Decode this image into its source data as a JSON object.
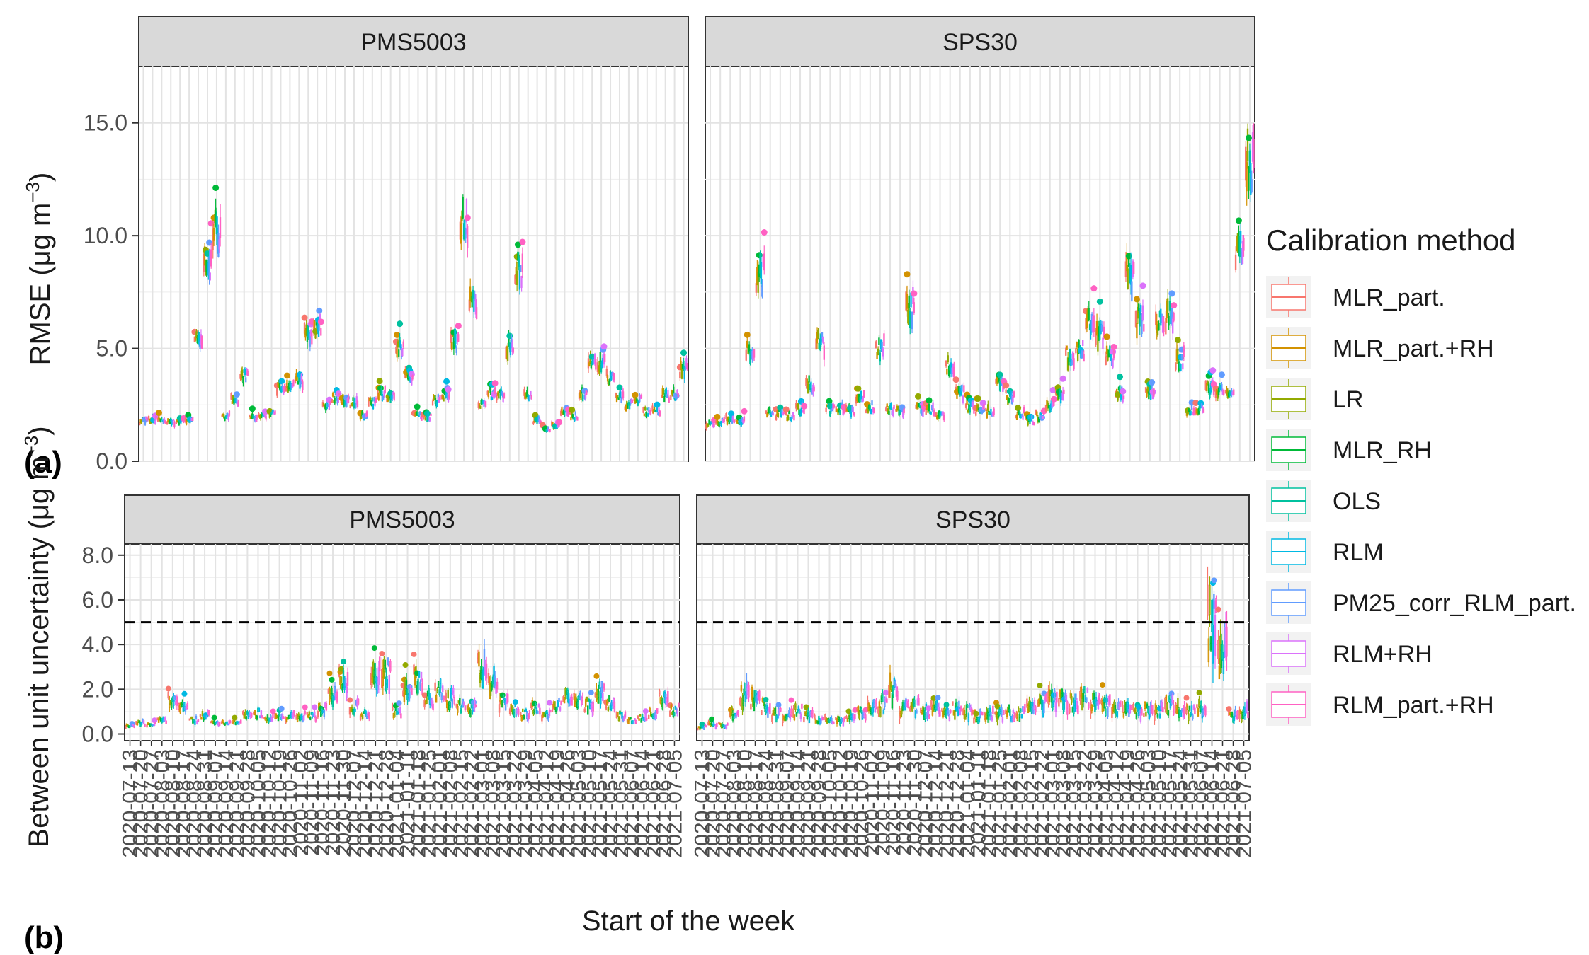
{
  "chart_data": [
    {
      "type": "box",
      "panel_label": "(a)",
      "ylabel_main": "RMSE (",
      "ylabel_unit": "μg m",
      "ylabel_sup": "−3",
      "ylabel_close": ")",
      "ylim": [
        0,
        17.5
      ],
      "yticks": [
        0,
        5,
        10,
        15
      ],
      "ytick_labels": [
        "0.0",
        "5.0",
        "10.0",
        "15.0"
      ],
      "facets": [
        {
          "name": "PMS5003",
          "weeks": 60,
          "levels": [
            1.8,
            1.8,
            1.8,
            1.75,
            1.8,
            1.75,
            5.3,
            8.8,
            10.2,
            2.0,
            2.7,
            3.8,
            1.9,
            2.0,
            2.1,
            3.3,
            3.4,
            3.5,
            5.6,
            5.9,
            2.5,
            2.8,
            2.7,
            2.6,
            2.0,
            2.6,
            3.0,
            2.9,
            5.0,
            3.7,
            2.0,
            2.0,
            2.7,
            2.9,
            5.3,
            10.5,
            7.0,
            2.5,
            3.0,
            2.9,
            5.0,
            8.5,
            2.9,
            1.8,
            1.4,
            1.6,
            2.2,
            2.0,
            3.0,
            4.3,
            4.4,
            3.7,
            2.9,
            2.5,
            2.7,
            2.2,
            2.2,
            2.9,
            3.0,
            4.1
          ]
        },
        {
          "name": "SPS30",
          "weeks": 55,
          "levels": [
            1.7,
            1.75,
            1.85,
            1.75,
            5.0,
            8.2,
            2.2,
            2.1,
            2.0,
            2.3,
            3.4,
            5.2,
            2.3,
            2.3,
            2.2,
            2.9,
            2.4,
            5.0,
            2.3,
            2.2,
            6.8,
            2.3,
            2.3,
            2.0,
            4.3,
            3.0,
            2.4,
            2.3,
            2.2,
            3.4,
            2.9,
            2.1,
            1.8,
            2.0,
            2.5,
            2.9,
            4.7,
            4.9,
            6.3,
            5.7,
            4.6,
            3.0,
            8.2,
            6.3,
            3.1,
            6.2,
            6.4,
            4.5,
            2.2,
            2.3,
            3.2,
            3.1,
            2.9,
            9.5,
            13.0
          ]
        }
      ]
    },
    {
      "type": "box",
      "panel_label": "(b)",
      "ylabel_main": "Between unit uncertainty (",
      "ylabel_unit": "μg m",
      "ylabel_sup": "−3",
      "ylabel_close": ")",
      "ylim": [
        -0.3,
        8.5
      ],
      "yticks": [
        0,
        2,
        4,
        6,
        8
      ],
      "ytick_labels": [
        "0.0",
        "2.0",
        "4.0",
        "6.0",
        "8.0"
      ],
      "reference_line": 5.0,
      "facets": [
        {
          "name": "PMS5003",
          "weeks": 52,
          "levels": [
            0.4,
            0.5,
            0.4,
            0.6,
            1.5,
            1.2,
            0.6,
            0.8,
            0.5,
            0.5,
            0.5,
            0.8,
            0.9,
            0.7,
            0.8,
            0.8,
            0.8,
            0.8,
            1.1,
            1.8,
            2.3,
            1.2,
            0.9,
            2.6,
            2.8,
            1.0,
            2.0,
            2.4,
            1.5,
            1.9,
            1.6,
            1.3,
            1.1,
            2.9,
            2.4,
            1.4,
            1.1,
            0.9,
            1.2,
            0.9,
            1.3,
            1.6,
            1.5,
            1.3,
            1.9,
            1.4,
            0.8,
            0.6,
            0.7,
            0.9,
            1.7,
            1.1
          ],
          "x_tick_labels": [
            "2020-07-13",
            "2020-07-20",
            "2020-07-27",
            "2020-08-03",
            "2020-08-10",
            "2020-08-17",
            "2020-08-24",
            "2020-08-31",
            "2020-09-07",
            "2020-09-14",
            "2020-09-21",
            "2020-09-28",
            "2020-10-05",
            "2020-10-12",
            "2020-10-19",
            "2020-10-26",
            "2020-11-02",
            "2020-11-09",
            "2020-11-16",
            "2020-11-23",
            "2020-11-30",
            "2020-12-07",
            "2020-12-14",
            "2020-12-21",
            "2020-12-28",
            "2021-01-04",
            "2021-01-11",
            "2021-01-18",
            "2021-01-25",
            "2021-02-01",
            "2021-02-08",
            "2021-02-15",
            "2021-02-22",
            "2021-03-01",
            "2021-03-08",
            "2021-03-15",
            "2021-03-22",
            "2021-03-29",
            "2021-04-05",
            "2021-04-12",
            "2021-04-19",
            "2021-04-26",
            "2021-05-03",
            "2021-05-10",
            "2021-05-17",
            "2021-05-24",
            "2021-05-31",
            "2021-06-07",
            "2021-06-14",
            "2021-06-21",
            "2021-06-28",
            "2021-07-05"
          ]
        },
        {
          "name": "SPS30",
          "weeks": 52,
          "levels": [
            0.3,
            0.4,
            0.4,
            0.9,
            1.8,
            1.5,
            1.2,
            0.9,
            0.8,
            1.0,
            0.8,
            0.6,
            0.6,
            0.6,
            0.7,
            0.9,
            1.1,
            1.3,
            2.0,
            1.2,
            1.2,
            1.0,
            1.1,
            0.9,
            1.1,
            1.0,
            0.8,
            0.9,
            0.8,
            0.9,
            1.0,
            1.1,
            1.3,
            1.6,
            1.5,
            1.4,
            1.6,
            1.4,
            1.3,
            1.2,
            1.1,
            1.0,
            1.0,
            1.1,
            1.3,
            1.2,
            1.0,
            1.1,
            5.0,
            3.5,
            0.8,
            1.0
          ],
          "x_tick_labels": [
            "2020-07-13",
            "2020-07-20",
            "2020-07-27",
            "2020-08-03",
            "2020-08-10",
            "2020-08-17",
            "2020-08-24",
            "2020-08-31",
            "2020-09-07",
            "2020-09-14",
            "2020-09-21",
            "2020-09-28",
            "2020-10-05",
            "2020-10-12",
            "2020-10-19",
            "2020-10-26",
            "2020-11-02",
            "2020-11-09",
            "2020-11-16",
            "2020-11-23",
            "2020-11-30",
            "2020-12-07",
            "2020-12-14",
            "2020-12-21",
            "2020-12-28",
            "2021-01-04",
            "2021-01-11",
            "2021-01-18",
            "2021-01-25",
            "2021-02-01",
            "2021-02-08",
            "2021-02-15",
            "2021-02-22",
            "2021-03-01",
            "2021-03-08",
            "2021-03-15",
            "2021-03-22",
            "2021-03-29",
            "2021-04-05",
            "2021-04-12",
            "2021-04-19",
            "2021-04-26",
            "2021-05-03",
            "2021-05-10",
            "2021-05-17",
            "2021-05-24",
            "2021-05-31",
            "2021-06-07",
            "2021-06-14",
            "2021-06-21",
            "2021-06-28",
            "2021-07-05"
          ]
        }
      ]
    }
  ],
  "xlabel": "Start of the week",
  "legend": {
    "title": "Calibration method",
    "placement": "right",
    "entries": [
      {
        "name": "MLR_part.",
        "color": "#F8766D"
      },
      {
        "name": "MLR_part.+RH",
        "color": "#D39200"
      },
      {
        "name": "LR",
        "color": "#93AA00"
      },
      {
        "name": "MLR_RH",
        "color": "#00BA38"
      },
      {
        "name": "OLS",
        "color": "#00C19F"
      },
      {
        "name": "RLM",
        "color": "#00B9E3"
      },
      {
        "name": "PM25_corr_RLM_part.",
        "color": "#619CFF"
      },
      {
        "name": "RLM+RH",
        "color": "#DB72FB"
      },
      {
        "name": "RLM_part.+RH",
        "color": "#FF61C3"
      }
    ]
  }
}
